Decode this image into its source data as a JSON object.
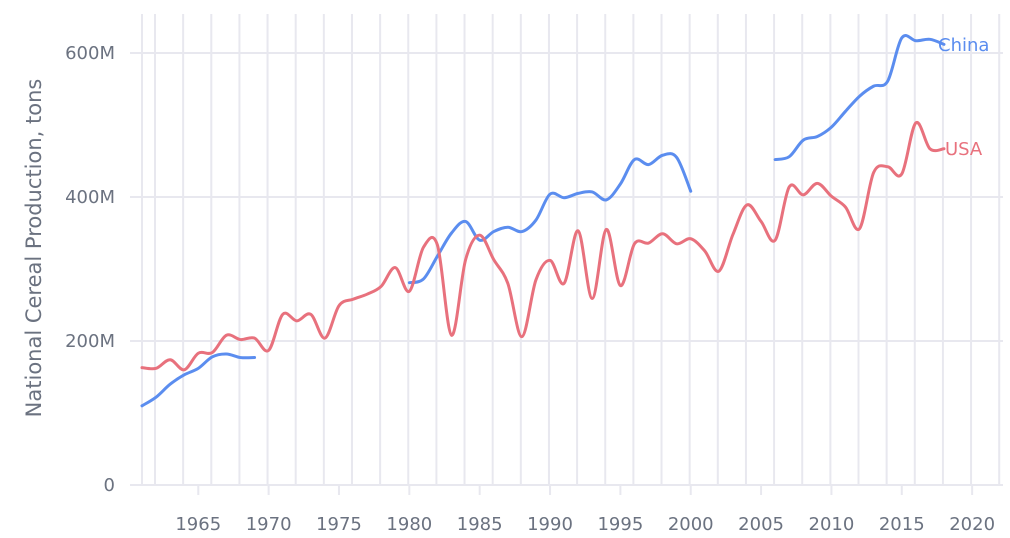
{
  "chart_data": {
    "type": "line",
    "title": "",
    "xlabel": "",
    "ylabel": "National Cereal Production, tons",
    "xlim": [
      1961,
      2021
    ],
    "ylim": [
      0,
      620000000
    ],
    "grid": true,
    "legend_position": "inline-end-labels",
    "x_ticks": [
      1965,
      1970,
      1975,
      1980,
      1985,
      1990,
      1995,
      2000,
      2005,
      2010,
      2015,
      2020
    ],
    "x_tick_labels": [
      "1965",
      "1970",
      "1975",
      "1980",
      "1985",
      "1990",
      "1995",
      "2000",
      "2005",
      "2010",
      "2015",
      "2020"
    ],
    "y_ticks": [
      0,
      200000000,
      400000000,
      600000000
    ],
    "y_tick_labels": [
      "0",
      "200M",
      "400M",
      "600M"
    ],
    "series": [
      {
        "name": "China",
        "color": "#5b8def",
        "segments": [
          {
            "x": [
              1961,
              1962,
              1963,
              1964,
              1965,
              1966,
              1967,
              1968,
              1969
            ],
            "values": [
              110000000.0,
              122000000.0,
              140000000.0,
              153000000.0,
              162000000.0,
              178000000.0,
              182000000.0,
              177000000.0,
              177000000.0
            ]
          },
          {
            "x": [
              1980,
              1981,
              1982,
              1983,
              1984,
              1985,
              1986,
              1987,
              1988,
              1989,
              1990,
              1991,
              1992,
              1993,
              1994,
              1995,
              1996,
              1997,
              1998,
              1999,
              2000
            ],
            "values": [
              281000000.0,
              286000000.0,
              318000000.0,
              350000000.0,
              366000000.0,
              340000000.0,
              352000000.0,
              358000000.0,
              352000000.0,
              368000000.0,
              404000000.0,
              399000000.0,
              405000000.0,
              407000000.0,
              396000000.0,
              418000000.0,
              452000000.0,
              445000000.0,
              458000000.0,
              455000000.0,
              408000000.0
            ]
          },
          {
            "x": [
              2006,
              2007,
              2008,
              2009,
              2010,
              2011,
              2012,
              2013,
              2014,
              2015,
              2016,
              2017,
              2018
            ],
            "values": [
              452000000.0,
              456000000.0,
              479000000.0,
              484000000.0,
              497000000.0,
              519000000.0,
              540000000.0,
              554000000.0,
              561000000.0,
              621000000.0,
              617000000.0,
              619000000.0,
              612000000.0
            ]
          }
        ]
      },
      {
        "name": "USA",
        "color": "#e8717d",
        "segments": [
          {
            "x": [
              1961,
              1962,
              1963,
              1964,
              1965,
              1966,
              1967,
              1968,
              1969,
              1970,
              1971,
              1972,
              1973,
              1974,
              1975,
              1976,
              1977,
              1978,
              1979,
              1980,
              1981,
              1982,
              1983,
              1984,
              1985,
              1986,
              1987,
              1988,
              1989,
              1990,
              1991,
              1992,
              1993,
              1994,
              1995,
              1996,
              1997,
              1998,
              1999,
              2000,
              2001,
              2002,
              2003,
              2004,
              2005,
              2006,
              2007,
              2008,
              2009,
              2010,
              2011,
              2012,
              2013,
              2014,
              2015,
              2016,
              2017,
              2018
            ],
            "values": [
              163000000.0,
              162000000.0,
              174000000.0,
              160000000.0,
              183000000.0,
              184000000.0,
              208000000.0,
              202000000.0,
              204000000.0,
              187000000.0,
              237000000.0,
              228000000.0,
              237000000.0,
              204000000.0,
              249000000.0,
              258000000.0,
              265000000.0,
              276000000.0,
              302000000.0,
              269000000.0,
              330000000.0,
              333000000.0,
              208000000.0,
              313000000.0,
              347000000.0,
              313000000.0,
              280000000.0,
              206000000.0,
              285000000.0,
              312000000.0,
              280000000.0,
              353000000.0,
              259000000.0,
              355000000.0,
              277000000.0,
              335000000.0,
              336000000.0,
              349000000.0,
              335000000.0,
              342000000.0,
              325000000.0,
              297000000.0,
              348000000.0,
              389000000.0,
              366000000.0,
              340000000.0,
              414000000.0,
              403000000.0,
              419000000.0,
              401000000.0,
              386000000.0,
              356000000.0,
              434000000.0,
              442000000.0,
              432000000.0,
              503000000.0,
              467000000.0,
              467000000.0
            ]
          }
        ]
      }
    ],
    "annotations": [
      {
        "text": "China",
        "x": 2018,
        "y": 612000000.0
      },
      {
        "text": "USA",
        "x": 2018,
        "y": 467000000.0
      }
    ]
  },
  "labels": {
    "y_axis_title": "National Cereal Production, tons",
    "y_ticks": [
      "0",
      "200M",
      "400M",
      "600M"
    ],
    "x_ticks": [
      "1965",
      "1970",
      "1975",
      "1980",
      "1985",
      "1990",
      "1995",
      "2000",
      "2005",
      "2010",
      "2015",
      "2020"
    ],
    "china_label": "China",
    "usa_label": "USA"
  }
}
